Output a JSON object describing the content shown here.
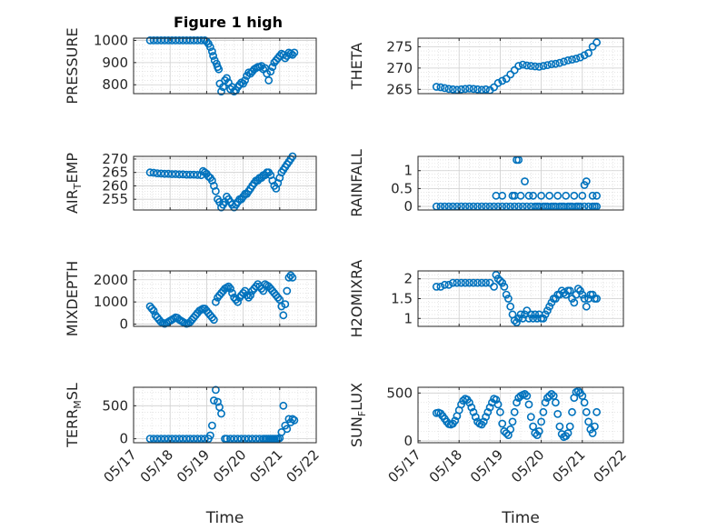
{
  "figure": {
    "title": "Figure 1 high"
  },
  "colors": {
    "marker": "#0072BD",
    "grid": "#d6d6d6",
    "axis": "#262626"
  },
  "chart_data": [
    {
      "type": "scatter",
      "ylabel": "PRESSURE",
      "ylim": [
        760,
        1010
      ],
      "yticks": [
        800,
        900,
        1000
      ],
      "grid": true,
      "title": "Figure 1 high",
      "x": [
        17.45,
        17.55,
        17.65,
        17.75,
        17.85,
        17.95,
        18.05,
        18.15,
        18.25,
        18.35,
        18.45,
        18.55,
        18.65,
        18.75,
        18.85,
        18.95,
        19.0,
        19.05,
        19.1,
        19.15,
        19.18,
        19.22,
        19.27,
        19.3,
        19.33,
        19.36,
        19.4,
        19.45,
        19.5,
        19.55,
        19.6,
        19.65,
        19.7,
        19.75,
        19.8,
        19.85,
        19.9,
        19.95,
        20.0,
        20.05,
        20.1,
        20.15,
        20.2,
        20.25,
        20.3,
        20.35,
        20.4,
        20.45,
        20.5,
        20.55,
        20.6,
        20.65,
        20.7,
        20.75,
        20.8,
        20.85,
        20.9,
        20.95,
        21.0,
        21.05,
        21.1,
        21.15,
        21.2,
        21.25,
        21.3,
        21.35,
        21.4
      ],
      "values": [
        1000,
        1000,
        1000,
        1000,
        1000,
        1000,
        1000,
        1000,
        1000,
        1000,
        1000,
        1000,
        1000,
        1000,
        1000,
        1000,
        995,
        985,
        970,
        950,
        930,
        910,
        895,
        880,
        870,
        805,
        770,
        790,
        820,
        830,
        810,
        780,
        790,
        770,
        775,
        790,
        800,
        810,
        805,
        820,
        840,
        855,
        850,
        860,
        870,
        875,
        880,
        880,
        885,
        870,
        875,
        850,
        820,
        860,
        880,
        900,
        910,
        920,
        930,
        940,
        935,
        920,
        930,
        945,
        940,
        935,
        945
      ]
    },
    {
      "type": "scatter",
      "ylabel": "THETA",
      "ylim": [
        264,
        277
      ],
      "yticks": [
        265,
        270,
        275
      ],
      "grid": true,
      "x": [
        17.45,
        17.55,
        17.65,
        17.75,
        17.85,
        17.95,
        18.05,
        18.15,
        18.25,
        18.35,
        18.45,
        18.55,
        18.65,
        18.75,
        18.85,
        18.95,
        19.05,
        19.15,
        19.25,
        19.35,
        19.45,
        19.55,
        19.65,
        19.75,
        19.85,
        19.95,
        20.05,
        20.15,
        20.25,
        20.35,
        20.45,
        20.55,
        20.65,
        20.75,
        20.85,
        20.95,
        21.05,
        21.15,
        21.25,
        21.35
      ],
      "values": [
        265.6,
        265.5,
        265.3,
        265.1,
        265.0,
        264.9,
        265.0,
        265.1,
        265.2,
        265.1,
        265.0,
        264.9,
        265.0,
        264.8,
        265.5,
        266.5,
        267.0,
        267.5,
        268.5,
        269.5,
        270.5,
        270.8,
        270.6,
        270.5,
        270.4,
        270.3,
        270.5,
        270.7,
        270.9,
        271.0,
        271.2,
        271.5,
        271.8,
        272.0,
        272.2,
        272.5,
        273.0,
        273.5,
        275.0,
        276.0
      ]
    },
    {
      "type": "scatter",
      "ylabel": "AIR_TEMP",
      "ylim": [
        251,
        271
      ],
      "yticks": [
        255,
        260,
        265,
        270
      ],
      "grid": true,
      "x": [
        17.45,
        17.55,
        17.65,
        17.75,
        17.85,
        17.95,
        18.05,
        18.15,
        18.25,
        18.35,
        18.45,
        18.55,
        18.65,
        18.75,
        18.85,
        18.9,
        18.95,
        19.0,
        19.05,
        19.1,
        19.15,
        19.2,
        19.25,
        19.3,
        19.35,
        19.4,
        19.45,
        19.5,
        19.55,
        19.6,
        19.65,
        19.7,
        19.75,
        19.8,
        19.85,
        19.9,
        19.95,
        20.0,
        20.05,
        20.1,
        20.15,
        20.2,
        20.25,
        20.3,
        20.35,
        20.4,
        20.45,
        20.5,
        20.55,
        20.6,
        20.65,
        20.7,
        20.75,
        20.8,
        20.85,
        20.9,
        20.95,
        21.0,
        21.05,
        21.1,
        21.15,
        21.2,
        21.25,
        21.3,
        21.35
      ],
      "values": [
        265,
        264.9,
        264.7,
        264.6,
        264.5,
        264.5,
        264.4,
        264.4,
        264.3,
        264.3,
        264.2,
        264.2,
        264.2,
        264.1,
        264.0,
        265.5,
        265.0,
        264.5,
        263.5,
        263,
        262,
        260,
        258,
        255,
        254,
        252,
        253,
        254,
        256,
        255,
        254,
        253,
        252,
        253,
        254,
        255,
        255,
        256,
        257,
        257,
        258,
        259,
        260,
        261,
        262,
        262,
        263,
        263,
        264,
        264,
        265,
        265,
        264,
        262,
        260,
        259,
        261,
        263,
        265,
        266,
        267,
        268,
        269,
        270,
        271
      ]
    },
    {
      "type": "scatter",
      "ylabel": "RAINFALL",
      "ylim": [
        -0.1,
        1.4
      ],
      "yticks": [
        0,
        0.5,
        1
      ],
      "grid": true,
      "x": [
        17.45,
        17.55,
        17.65,
        17.75,
        17.85,
        17.95,
        18.05,
        18.15,
        18.25,
        18.35,
        18.45,
        18.55,
        18.65,
        18.75,
        18.85,
        18.95,
        19.05,
        19.15,
        19.25,
        19.35,
        19.45,
        19.55,
        19.65,
        19.75,
        19.85,
        19.95,
        20.05,
        20.15,
        20.25,
        20.35,
        20.45,
        20.55,
        20.65,
        20.75,
        20.85,
        20.95,
        21.05,
        21.15,
        21.25,
        21.35,
        18.9,
        19.05,
        19.3,
        19.35,
        19.4,
        19.45,
        19.5,
        19.6,
        19.7,
        19.8,
        19.9,
        20.0,
        20.1,
        20.2,
        20.3,
        20.4,
        20.5,
        20.6,
        20.7,
        20.8,
        20.9,
        21.0,
        21.05,
        21.1,
        21.25,
        21.35,
        21.3
      ],
      "values": [
        0,
        0,
        0,
        0,
        0,
        0,
        0,
        0,
        0,
        0,
        0,
        0,
        0,
        0,
        0,
        0,
        0,
        0,
        0,
        0,
        0,
        0,
        0,
        0,
        0,
        0,
        0,
        0,
        0,
        0,
        0,
        0,
        0,
        0,
        0,
        0,
        0,
        0,
        0,
        0,
        0.3,
        0.3,
        0.3,
        0.3,
        1.3,
        1.3,
        0.3,
        0.7,
        0.3,
        0.3,
        0,
        0.3,
        0,
        0.3,
        0,
        0.3,
        0,
        0.3,
        0,
        0.3,
        0,
        0.3,
        0.6,
        0.7,
        0.3,
        0.3,
        0
      ]
    },
    {
      "type": "scatter",
      "ylabel": "MIXDEPTH",
      "ylim": [
        -100,
        2400
      ],
      "yticks": [
        0,
        1000,
        2000
      ],
      "grid": true,
      "x": [
        17.45,
        17.5,
        17.55,
        17.6,
        17.65,
        17.7,
        17.75,
        17.8,
        17.85,
        17.9,
        17.95,
        18.0,
        18.05,
        18.1,
        18.15,
        18.2,
        18.25,
        18.3,
        18.35,
        18.4,
        18.45,
        18.5,
        18.55,
        18.6,
        18.65,
        18.7,
        18.75,
        18.8,
        18.85,
        18.9,
        18.95,
        19.0,
        19.05,
        19.1,
        19.15,
        19.2,
        19.25,
        19.3,
        19.35,
        19.4,
        19.45,
        19.5,
        19.55,
        19.6,
        19.65,
        19.7,
        19.75,
        19.8,
        19.85,
        19.9,
        19.95,
        20.0,
        20.05,
        20.1,
        20.15,
        20.2,
        20.25,
        20.3,
        20.35,
        20.4,
        20.45,
        20.5,
        20.55,
        20.6,
        20.65,
        20.7,
        20.75,
        20.8,
        20.85,
        20.9,
        20.95,
        21.0,
        21.05,
        21.1,
        21.15,
        21.2,
        21.25,
        21.3,
        21.35
      ],
      "values": [
        800,
        700,
        600,
        400,
        300,
        200,
        100,
        50,
        20,
        50,
        100,
        150,
        200,
        250,
        300,
        280,
        200,
        150,
        100,
        50,
        20,
        40,
        100,
        200,
        300,
        400,
        500,
        600,
        650,
        700,
        700,
        600,
        500,
        400,
        300,
        200,
        1000,
        1200,
        1300,
        1400,
        1500,
        1600,
        1650,
        1700,
        1600,
        1400,
        1200,
        1100,
        1000,
        1200,
        1300,
        1400,
        1500,
        1300,
        1200,
        1300,
        1500,
        1600,
        1700,
        1800,
        1700,
        1600,
        1500,
        1800,
        1750,
        1700,
        1600,
        1500,
        1400,
        1300,
        1200,
        1100,
        800,
        400,
        900,
        1500,
        2100,
        2200,
        2100
      ]
    },
    {
      "type": "scatter",
      "ylabel": "H2OMIXRA",
      "ylim": [
        0.8,
        2.2
      ],
      "yticks": [
        1,
        1.5,
        2
      ],
      "grid": true,
      "x": [
        17.45,
        17.55,
        17.65,
        17.75,
        17.85,
        17.95,
        18.05,
        18.15,
        18.25,
        18.35,
        18.45,
        18.55,
        18.65,
        18.75,
        18.85,
        18.9,
        18.95,
        19.0,
        19.05,
        19.1,
        19.15,
        19.2,
        19.25,
        19.3,
        19.35,
        19.4,
        19.45,
        19.5,
        19.55,
        19.6,
        19.65,
        19.7,
        19.75,
        19.8,
        19.85,
        19.9,
        19.95,
        20.0,
        20.05,
        20.1,
        20.15,
        20.2,
        20.25,
        20.3,
        20.35,
        20.4,
        20.45,
        20.5,
        20.55,
        20.6,
        20.65,
        20.7,
        20.75,
        20.8,
        20.85,
        20.9,
        20.95,
        21.0,
        21.05,
        21.1,
        21.15,
        21.2,
        21.25,
        21.3,
        21.35
      ],
      "values": [
        1.8,
        1.8,
        1.85,
        1.85,
        1.9,
        1.9,
        1.9,
        1.9,
        1.9,
        1.9,
        1.9,
        1.9,
        1.9,
        1.9,
        1.8,
        2.1,
        2.0,
        1.95,
        1.9,
        1.8,
        1.6,
        1.5,
        1.3,
        1.1,
        0.95,
        0.9,
        1.0,
        1.1,
        1.0,
        1.1,
        1.2,
        1.0,
        1.1,
        1.0,
        1.1,
        1.0,
        1.1,
        1.0,
        1.0,
        1.1,
        1.2,
        1.3,
        1.4,
        1.5,
        1.5,
        1.6,
        1.6,
        1.7,
        1.65,
        1.6,
        1.7,
        1.7,
        1.5,
        1.4,
        1.6,
        1.75,
        1.7,
        1.6,
        1.5,
        1.3,
        1.5,
        1.6,
        1.6,
        1.5,
        1.5
      ]
    },
    {
      "type": "scatter",
      "ylabel": "TERR_MSL",
      "ylim": [
        -60,
        780
      ],
      "yticks": [
        0,
        500
      ],
      "grid": true,
      "xlabel": "Time",
      "xticks": [
        "05/17",
        "05/18",
        "05/19",
        "05/20",
        "05/21",
        "05/22"
      ],
      "x": [
        17.45,
        17.55,
        17.65,
        17.75,
        17.85,
        17.95,
        18.05,
        18.15,
        18.25,
        18.35,
        18.45,
        18.55,
        18.65,
        18.75,
        18.85,
        18.95,
        19.05,
        19.1,
        19.15,
        19.2,
        19.25,
        19.3,
        19.35,
        19.4,
        19.5,
        19.55,
        19.65,
        19.75,
        19.85,
        19.95,
        20.05,
        20.15,
        20.25,
        20.35,
        20.45,
        20.55,
        20.6,
        20.65,
        20.7,
        20.75,
        20.8,
        20.85,
        20.9,
        20.95,
        21.0,
        21.05,
        21.1,
        21.15,
        21.2,
        21.25,
        21.3,
        21.35,
        21.4
      ],
      "values": [
        0,
        0,
        0,
        0,
        0,
        0,
        0,
        0,
        0,
        0,
        0,
        0,
        0,
        0,
        0,
        0,
        0,
        50,
        200,
        580,
        740,
        560,
        480,
        380,
        0,
        0,
        0,
        0,
        0,
        0,
        0,
        0,
        0,
        0,
        0,
        0,
        0,
        0,
        0,
        0,
        0,
        0,
        0,
        0,
        10,
        100,
        500,
        200,
        150,
        300,
        250,
        300,
        280
      ]
    },
    {
      "type": "scatter",
      "ylabel": "SUN_FLUX",
      "ylim": [
        -20,
        560
      ],
      "yticks": [
        0,
        500
      ],
      "grid": true,
      "xlabel": "Time",
      "xticks": [
        "05/17",
        "05/18",
        "05/19",
        "05/20",
        "05/21",
        "05/22"
      ],
      "x": [
        17.45,
        17.5,
        17.55,
        17.6,
        17.65,
        17.7,
        17.75,
        17.8,
        17.85,
        17.9,
        17.95,
        18.0,
        18.05,
        18.1,
        18.15,
        18.2,
        18.25,
        18.3,
        18.35,
        18.4,
        18.45,
        18.5,
        18.55,
        18.6,
        18.65,
        18.7,
        18.75,
        18.8,
        18.85,
        18.9,
        18.95,
        19.0,
        19.05,
        19.1,
        19.15,
        19.2,
        19.25,
        19.3,
        19.35,
        19.4,
        19.45,
        19.5,
        19.55,
        19.6,
        19.65,
        19.7,
        19.75,
        19.8,
        19.85,
        19.9,
        19.95,
        20.0,
        20.05,
        20.1,
        20.15,
        20.2,
        20.25,
        20.3,
        20.35,
        20.4,
        20.45,
        20.5,
        20.55,
        20.6,
        20.65,
        20.7,
        20.75,
        20.8,
        20.85,
        20.9,
        20.95,
        21.0,
        21.05,
        21.1,
        21.15,
        21.2,
        21.25,
        21.3,
        21.35
      ],
      "values": [
        290,
        295,
        285,
        260,
        230,
        200,
        175,
        170,
        180,
        210,
        260,
        320,
        380,
        420,
        440,
        430,
        400,
        350,
        300,
        250,
        200,
        180,
        170,
        200,
        250,
        300,
        350,
        400,
        440,
        430,
        380,
        300,
        180,
        100,
        80,
        60,
        120,
        200,
        300,
        400,
        450,
        470,
        480,
        490,
        470,
        380,
        250,
        150,
        80,
        60,
        100,
        200,
        300,
        400,
        450,
        470,
        490,
        470,
        400,
        280,
        150,
        70,
        40,
        50,
        80,
        150,
        300,
        450,
        510,
        520,
        500,
        470,
        400,
        300,
        200,
        120,
        80,
        150,
        300
      ]
    }
  ]
}
